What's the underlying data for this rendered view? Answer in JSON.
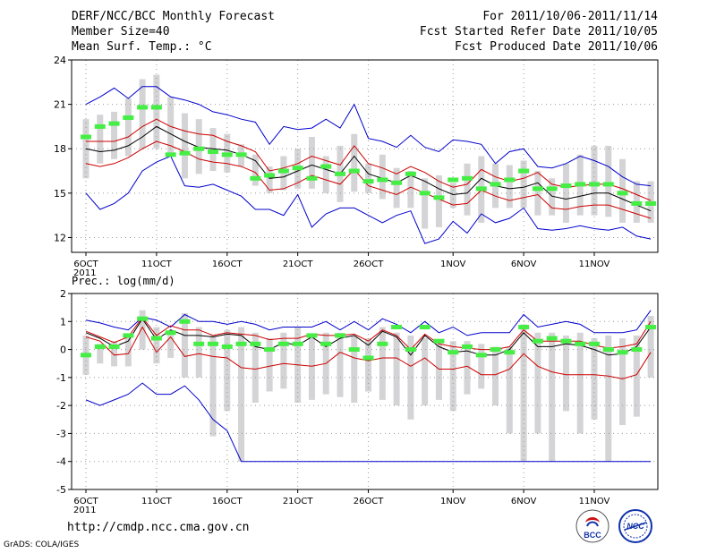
{
  "header": {
    "title": "DERF/NCC/BCC Monthly Forecast",
    "member_size": "Member Size=40",
    "var_label": "Mean Surf. Temp.: °C",
    "period": "For 2011/10/06-2011/11/14",
    "fcst_started": "Fcst Started Refer Date 2011/10/05",
    "fcst_produced": "Fcst Produced Date 2011/10/06"
  },
  "footer": {
    "url": "http://cmdp.ncc.cma.gov.cn",
    "credit": "GrADS: COLA/IGES",
    "logo_left": "BCC",
    "logo_right": "NCC"
  },
  "colors": {
    "box": "#d4d4d6",
    "mean": "#000000",
    "obs": "#44ee44",
    "sigma": "#cc0000",
    "envelope": "#0000cc",
    "grid": "#999999"
  },
  "chart_data": [
    {
      "type": "line",
      "title": "Mean Surf. Temp.: °C",
      "ylabel": "°C",
      "ylim": [
        11,
        24
      ],
      "yticks": [
        12,
        15,
        18,
        21,
        24
      ],
      "xticks": [
        {
          "day": 0,
          "label": "6OCT"
        },
        {
          "day": 5,
          "label": "11OCT"
        },
        {
          "day": 10,
          "label": "16OCT"
        },
        {
          "day": 15,
          "label": "21OCT"
        },
        {
          "day": 20,
          "label": "26OCT"
        },
        {
          "day": 26,
          "label": "1NOV"
        },
        {
          "day": 31,
          "label": "6NOV"
        },
        {
          "day": 36,
          "label": "11NOV"
        }
      ],
      "year_label": "2011",
      "xlim": [
        0,
        39
      ],
      "series": [
        {
          "name": "ensemble max",
          "color_key": "envelope",
          "values": [
            21.0,
            21.5,
            22.1,
            21.4,
            22.2,
            22.2,
            21.5,
            21.3,
            21.0,
            20.5,
            20.3,
            20.0,
            19.8,
            18.3,
            19.5,
            19.3,
            19.4,
            20.0,
            19.4,
            21.0,
            18.7,
            18.5,
            18.1,
            18.9,
            18.1,
            17.8,
            18.6,
            18.5,
            18.3,
            17.0,
            17.8,
            18.0,
            16.8,
            16.7,
            17.0,
            17.5,
            17.2,
            16.8,
            16.1,
            15.6,
            15.5
          ]
        },
        {
          "name": "mean + sigma",
          "color_key": "sigma",
          "values": [
            18.5,
            18.5,
            18.5,
            18.8,
            19.5,
            20.0,
            19.5,
            19.2,
            19.0,
            18.9,
            18.5,
            18.2,
            17.8,
            16.5,
            16.7,
            17.0,
            17.5,
            17.2,
            16.9,
            18.2,
            17.0,
            16.7,
            16.3,
            16.8,
            16.4,
            15.8,
            15.4,
            15.6,
            16.6,
            16.1,
            15.8,
            16.0,
            16.4,
            15.6,
            15.4,
            15.5,
            15.6,
            15.6,
            15.3,
            14.9,
            14.5
          ]
        },
        {
          "name": "ensemble mean",
          "color_key": "mean",
          "values": [
            18.0,
            17.8,
            17.9,
            18.2,
            18.8,
            19.5,
            19.0,
            18.5,
            18.1,
            18.0,
            17.9,
            17.6,
            17.2,
            16.0,
            16.1,
            16.5,
            16.9,
            16.6,
            16.3,
            17.5,
            16.3,
            16.0,
            15.7,
            16.2,
            15.8,
            15.3,
            14.9,
            15.0,
            16.0,
            15.5,
            15.3,
            15.4,
            15.7,
            14.8,
            14.6,
            14.8,
            15.0,
            15.0,
            14.6,
            14.2,
            13.8
          ]
        },
        {
          "name": "mean - sigma",
          "color_key": "sigma",
          "values": [
            17.0,
            16.8,
            17.0,
            17.4,
            18.0,
            18.5,
            18.2,
            17.8,
            17.3,
            17.1,
            17.0,
            16.8,
            16.4,
            15.2,
            15.3,
            15.7,
            16.2,
            15.9,
            15.6,
            16.6,
            15.5,
            15.2,
            14.9,
            15.4,
            15.0,
            14.6,
            14.2,
            14.3,
            15.2,
            14.8,
            14.5,
            14.7,
            14.9,
            14.0,
            13.9,
            14.1,
            14.2,
            14.2,
            13.9,
            13.6,
            13.3
          ]
        },
        {
          "name": "ensemble min",
          "color_key": "envelope",
          "values": [
            15.0,
            13.9,
            14.3,
            15.0,
            16.5,
            17.1,
            17.5,
            15.5,
            15.4,
            15.6,
            15.2,
            14.8,
            13.9,
            13.9,
            13.5,
            14.9,
            12.7,
            13.6,
            14.0,
            14.0,
            13.5,
            13.0,
            13.5,
            13.8,
            11.6,
            11.9,
            13.1,
            12.3,
            13.6,
            13.0,
            13.3,
            14.0,
            12.6,
            12.5,
            12.6,
            12.8,
            12.6,
            12.5,
            12.7,
            12.1,
            11.9
          ]
        }
      ],
      "boxes": [
        [
          16.0,
          20.0
        ],
        [
          17.0,
          20.3
        ],
        [
          17.3,
          20.5
        ],
        [
          17.5,
          21.4
        ],
        [
          18.0,
          22.7
        ],
        [
          18.0,
          23.0
        ],
        [
          17.5,
          21.5
        ],
        [
          16.0,
          20.4
        ],
        [
          16.3,
          20.0
        ],
        [
          16.5,
          19.4
        ],
        [
          16.4,
          19.0
        ],
        [
          16.8,
          18.3
        ],
        [
          15.5,
          17.6
        ],
        [
          15.0,
          16.8
        ],
        [
          15.2,
          17.5
        ],
        [
          15.3,
          18.0
        ],
        [
          15.3,
          18.8
        ],
        [
          15.0,
          17.5
        ],
        [
          14.4,
          18.2
        ],
        [
          15.1,
          19.0
        ],
        [
          15.0,
          17.0
        ],
        [
          14.6,
          17.6
        ],
        [
          14.0,
          16.7
        ],
        [
          14.0,
          16.5
        ],
        [
          12.6,
          16.0
        ],
        [
          12.7,
          16.2
        ],
        [
          14.0,
          15.7
        ],
        [
          13.5,
          17.0
        ],
        [
          13.0,
          17.5
        ],
        [
          14.0,
          17.0
        ],
        [
          14.0,
          16.9
        ],
        [
          14.0,
          17.2
        ],
        [
          13.5,
          16.5
        ],
        [
          13.5,
          16.0
        ],
        [
          13.0,
          17.0
        ],
        [
          13.5,
          17.6
        ],
        [
          13.5,
          18.2
        ],
        [
          13.4,
          18.2
        ],
        [
          13.0,
          17.3
        ],
        [
          13.0,
          15.8
        ],
        [
          13.0,
          15.8
        ]
      ],
      "observed": [
        18.8,
        19.5,
        19.7,
        20.1,
        20.8,
        20.8,
        17.6,
        17.7,
        18.0,
        17.8,
        17.6,
        17.6,
        16.0,
        16.2,
        16.5,
        16.7,
        16.0,
        16.8,
        16.3,
        16.5,
        15.8,
        15.9,
        15.7,
        16.3,
        15.0,
        14.7,
        15.9,
        16.0,
        15.3,
        15.6,
        15.9,
        16.5,
        15.3,
        15.3,
        15.5,
        15.6,
        15.6,
        15.6,
        15.0,
        14.3,
        14.3
      ]
    },
    {
      "type": "line",
      "title": "Prec.: log(mm/d)",
      "ylabel": "log(mm/d)",
      "ylim": [
        -5,
        2
      ],
      "yticks": [
        -5,
        -4,
        -3,
        -2,
        -1,
        0,
        1,
        2
      ],
      "xticks": [
        {
          "day": 0,
          "label": "6OCT"
        },
        {
          "day": 5,
          "label": "11OCT"
        },
        {
          "day": 10,
          "label": "16OCT"
        },
        {
          "day": 15,
          "label": "21OCT"
        },
        {
          "day": 20,
          "label": "26OCT"
        },
        {
          "day": 26,
          "label": "1NOV"
        },
        {
          "day": 31,
          "label": "6NOV"
        },
        {
          "day": 36,
          "label": "11NOV"
        }
      ],
      "year_label": "2011",
      "xlim": [
        0,
        39
      ],
      "series": [
        {
          "name": "ensemble max",
          "color_key": "envelope",
          "values": [
            1.05,
            0.95,
            0.8,
            0.7,
            1.15,
            1.05,
            0.8,
            1.25,
            1.0,
            1.0,
            0.9,
            1.0,
            0.9,
            0.7,
            0.8,
            0.8,
            0.8,
            1.0,
            0.7,
            1.0,
            0.7,
            1.1,
            0.9,
            0.6,
            1.0,
            0.6,
            0.8,
            0.5,
            0.6,
            0.6,
            0.6,
            1.25,
            0.8,
            0.9,
            1.0,
            0.9,
            0.6,
            0.6,
            0.6,
            0.7,
            1.4
          ]
        },
        {
          "name": "mean + sigma",
          "color_key": "sigma",
          "values": [
            0.65,
            0.45,
            0.25,
            0.45,
            1.15,
            0.5,
            0.85,
            0.7,
            0.7,
            0.5,
            0.6,
            0.55,
            0.5,
            0.35,
            0.4,
            0.4,
            0.55,
            0.5,
            0.5,
            0.55,
            0.3,
            0.7,
            0.5,
            0.0,
            0.55,
            0.2,
            0.1,
            0.05,
            0.0,
            0.0,
            0.1,
            0.7,
            0.3,
            0.3,
            0.3,
            0.3,
            0.15,
            0.05,
            0.1,
            0.2,
            1.0
          ]
        },
        {
          "name": "ensemble mean",
          "color_key": "mean",
          "values": [
            0.6,
            0.4,
            0.1,
            0.3,
            1.1,
            0.35,
            0.7,
            0.5,
            0.5,
            0.45,
            0.55,
            0.5,
            0.1,
            0.0,
            0.25,
            0.15,
            0.45,
            0.1,
            0.4,
            0.5,
            0.15,
            0.65,
            0.45,
            -0.2,
            0.5,
            0.1,
            -0.1,
            -0.05,
            -0.2,
            -0.2,
            0.0,
            0.6,
            0.1,
            0.1,
            0.2,
            0.15,
            0.0,
            -0.2,
            -0.15,
            0.1,
            0.8
          ]
        },
        {
          "name": "mean - sigma",
          "color_key": "sigma",
          "values": [
            0.45,
            0.3,
            -0.2,
            -0.15,
            0.8,
            -0.1,
            0.45,
            -0.25,
            -0.15,
            -0.25,
            -0.3,
            -0.65,
            -0.7,
            -0.6,
            -0.5,
            -0.55,
            -0.6,
            -0.5,
            -0.1,
            -0.3,
            -0.4,
            -0.3,
            -0.3,
            -0.6,
            -0.3,
            -0.7,
            -0.7,
            -0.6,
            -0.9,
            -0.9,
            -0.7,
            -0.15,
            -0.6,
            -0.8,
            -0.9,
            -0.9,
            -0.9,
            -0.95,
            -1.05,
            -0.9,
            -0.1
          ]
        },
        {
          "name": "ensemble min",
          "color_key": "envelope",
          "values": [
            -1.8,
            -2.0,
            -1.8,
            -1.6,
            -1.2,
            -1.6,
            -1.6,
            -1.3,
            -1.8,
            -2.5,
            -2.9,
            -4.0,
            -4.0,
            -4.0,
            -4.0,
            -4.0,
            -4.0,
            -4.0,
            -4.0,
            -4.0,
            -4.0,
            -4.0,
            -4.0,
            -4.0,
            -4.0,
            -4.0,
            -4.0,
            -4.0,
            -4.0,
            -4.0,
            -4.0,
            -4.0,
            -4.0,
            -4.0,
            -4.0,
            -4.0,
            -4.0,
            -4.0,
            -4.0,
            -4.0,
            -4.0
          ]
        }
      ],
      "boxes": [
        [
          -0.9,
          0.5
        ],
        [
          -0.5,
          0.2
        ],
        [
          -0.6,
          0.3
        ],
        [
          -0.6,
          0.5
        ],
        [
          0.0,
          1.4
        ],
        [
          -0.5,
          0.8
        ],
        [
          -0.3,
          0.6
        ],
        [
          -1.0,
          1.3
        ],
        [
          -1.0,
          0.8
        ],
        [
          -3.1,
          0.5
        ],
        [
          -2.2,
          0.7
        ],
        [
          -4.0,
          0.8
        ],
        [
          -1.9,
          0.6
        ],
        [
          -1.5,
          0.4
        ],
        [
          -1.4,
          0.6
        ],
        [
          -1.9,
          0.8
        ],
        [
          -1.8,
          0.5
        ],
        [
          -1.6,
          0.6
        ],
        [
          -1.7,
          0.6
        ],
        [
          -1.9,
          0.5
        ],
        [
          -1.5,
          0.4
        ],
        [
          -1.8,
          0.8
        ],
        [
          -2.0,
          0.6
        ],
        [
          -2.5,
          0.5
        ],
        [
          -2.0,
          0.4
        ],
        [
          -1.8,
          0.2
        ],
        [
          -2.2,
          0.3
        ],
        [
          -1.6,
          0.3
        ],
        [
          -1.4,
          0.2
        ],
        [
          -2.0,
          0.1
        ],
        [
          -3.0,
          0.1
        ],
        [
          -4.0,
          0.9
        ],
        [
          -3.0,
          0.6
        ],
        [
          -4.0,
          0.6
        ],
        [
          -2.2,
          0.5
        ],
        [
          -3.0,
          0.6
        ],
        [
          -2.5,
          0.4
        ],
        [
          -4.0,
          0.5
        ],
        [
          -2.7,
          0.4
        ],
        [
          -2.4,
          0.5
        ],
        [
          -1.0,
          1.2
        ]
      ],
      "observed": [
        -0.2,
        0.1,
        0.1,
        0.5,
        1.1,
        0.4,
        0.6,
        1.0,
        0.2,
        0.2,
        0.1,
        0.2,
        0.2,
        0.0,
        0.2,
        0.2,
        0.5,
        0.2,
        0.5,
        0.0,
        -0.3,
        0.2,
        0.8,
        0.0,
        0.8,
        0.3,
        -0.1,
        0.1,
        -0.2,
        0.0,
        -0.1,
        0.8,
        0.3,
        0.4,
        0.3,
        0.2,
        0.2,
        0.0,
        -0.1,
        0.0,
        0.8
      ]
    }
  ]
}
